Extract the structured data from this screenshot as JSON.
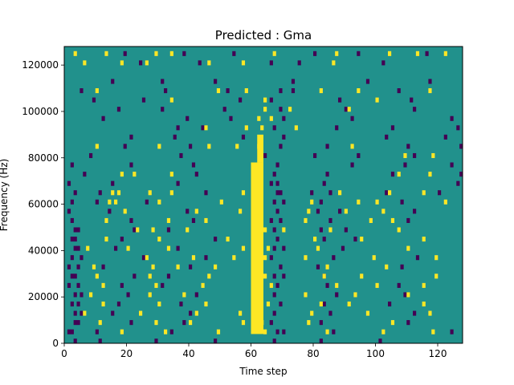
{
  "chart_data": {
    "type": "heatmap",
    "title": "Predicted : Gma",
    "xlabel": "Time step",
    "ylabel": "Frequency (Hz)",
    "xlim": [
      0,
      128
    ],
    "ylim": [
      0,
      128000
    ],
    "x_ticks": [
      0,
      20,
      40,
      60,
      80,
      100,
      120
    ],
    "y_ticks": [
      0,
      20000,
      40000,
      60000,
      80000,
      100000,
      120000
    ],
    "x_tick_labels": [
      "0",
      "20",
      "40",
      "60",
      "80",
      "100",
      "120"
    ],
    "y_tick_labels": [
      "0",
      "20000",
      "40000",
      "60000",
      "80000",
      "100000",
      "120000"
    ],
    "n_time_steps": 128,
    "n_freq_bins": 64,
    "values_legend": {
      "low": -1,
      "mid": 0,
      "high": 1
    },
    "colors": {
      "low": "#440154",
      "mid": "#21918c",
      "high": "#fde725"
    },
    "background_value": 0,
    "high_regions": [
      {
        "t_start": 60,
        "t_end": 64,
        "f_start": 4000,
        "f_end": 78000
      },
      {
        "t_start": 62,
        "t_end": 64,
        "f_start": 78000,
        "f_end": 90000
      }
    ],
    "high_cells": [
      [
        3,
        124000
      ],
      [
        34,
        124000
      ],
      [
        104,
        124000
      ],
      [
        122,
        124000
      ],
      [
        13,
        124000
      ],
      [
        29,
        124000
      ],
      [
        67,
        124000
      ],
      [
        87,
        124000
      ],
      [
        113,
        124000
      ],
      [
        6,
        120000
      ],
      [
        18,
        120000
      ],
      [
        26,
        120000
      ],
      [
        46,
        120000
      ],
      [
        57,
        120000
      ],
      [
        86,
        120000
      ],
      [
        10,
        108000
      ],
      [
        49,
        108000
      ],
      [
        58,
        108000
      ],
      [
        82,
        108000
      ],
      [
        94,
        108000
      ],
      [
        117,
        108000
      ],
      [
        34,
        104000
      ],
      [
        64,
        104000
      ],
      [
        100,
        104000
      ],
      [
        64,
        100000
      ],
      [
        72,
        100000
      ],
      [
        91,
        100000
      ],
      [
        62,
        96000
      ],
      [
        66,
        96000
      ],
      [
        45,
        92000
      ],
      [
        58,
        92000
      ],
      [
        63,
        92000
      ],
      [
        74,
        92000
      ],
      [
        10,
        84000
      ],
      [
        30,
        84000
      ],
      [
        46,
        84000
      ],
      [
        55,
        84000
      ],
      [
        62,
        84000
      ],
      [
        92,
        84000
      ],
      [
        109,
        80000
      ],
      [
        118,
        80000
      ],
      [
        18,
        72000
      ],
      [
        22,
        72000
      ],
      [
        34,
        72000
      ],
      [
        61,
        72000
      ],
      [
        107,
        72000
      ],
      [
        117,
        72000
      ],
      [
        15,
        64000
      ],
      [
        17,
        64000
      ],
      [
        27,
        64000
      ],
      [
        34,
        64000
      ],
      [
        57,
        64000
      ],
      [
        88,
        64000
      ],
      [
        104,
        64000
      ],
      [
        115,
        64000
      ],
      [
        14,
        60000
      ],
      [
        16,
        60000
      ],
      [
        30,
        60000
      ],
      [
        50,
        60000
      ],
      [
        79,
        60000
      ],
      [
        94,
        60000
      ],
      [
        100,
        60000
      ],
      [
        122,
        60000
      ],
      [
        19,
        56000
      ],
      [
        42,
        56000
      ],
      [
        56,
        56000
      ],
      [
        78,
        56000
      ],
      [
        90,
        56000
      ],
      [
        102,
        56000
      ],
      [
        13,
        52000
      ],
      [
        33,
        52000
      ],
      [
        45,
        52000
      ],
      [
        60,
        52000
      ],
      [
        77,
        52000
      ],
      [
        98,
        52000
      ],
      [
        105,
        52000
      ],
      [
        23,
        48000
      ],
      [
        28,
        48000
      ],
      [
        39,
        48000
      ],
      [
        64,
        48000
      ],
      [
        70,
        48000
      ],
      [
        85,
        48000
      ],
      [
        107,
        48000
      ],
      [
        13,
        44000
      ],
      [
        30,
        44000
      ],
      [
        52,
        44000
      ],
      [
        62,
        44000
      ],
      [
        80,
        44000
      ],
      [
        95,
        44000
      ],
      [
        115,
        44000
      ],
      [
        7,
        40000
      ],
      [
        20,
        40000
      ],
      [
        33,
        40000
      ],
      [
        57,
        40000
      ],
      [
        65,
        40000
      ],
      [
        81,
        40000
      ],
      [
        110,
        40000
      ],
      [
        26,
        36000
      ],
      [
        41,
        36000
      ],
      [
        54,
        36000
      ],
      [
        64,
        36000
      ],
      [
        77,
        36000
      ],
      [
        99,
        36000
      ],
      [
        119,
        36000
      ],
      [
        9,
        32000
      ],
      [
        28,
        32000
      ],
      [
        36,
        32000
      ],
      [
        48,
        32000
      ],
      [
        61,
        32000
      ],
      [
        84,
        32000
      ],
      [
        103,
        32000
      ],
      [
        10,
        28000
      ],
      [
        27,
        28000
      ],
      [
        46,
        28000
      ],
      [
        64,
        28000
      ],
      [
        83,
        28000
      ],
      [
        95,
        28000
      ],
      [
        119,
        28000
      ],
      [
        12,
        24000
      ],
      [
        29,
        24000
      ],
      [
        44,
        24000
      ],
      [
        66,
        24000
      ],
      [
        87,
        24000
      ],
      [
        100,
        24000
      ],
      [
        115,
        24000
      ],
      [
        8,
        20000
      ],
      [
        27,
        20000
      ],
      [
        38,
        20000
      ],
      [
        61,
        20000
      ],
      [
        77,
        20000
      ],
      [
        93,
        20000
      ],
      [
        110,
        20000
      ],
      [
        12,
        16000
      ],
      [
        30,
        16000
      ],
      [
        45,
        16000
      ],
      [
        65,
        16000
      ],
      [
        82,
        16000
      ],
      [
        91,
        16000
      ],
      [
        115,
        16000
      ],
      [
        6,
        12000
      ],
      [
        24,
        12000
      ],
      [
        42,
        12000
      ],
      [
        56,
        12000
      ],
      [
        79,
        12000
      ],
      [
        97,
        12000
      ],
      [
        117,
        12000
      ],
      [
        11,
        8000
      ],
      [
        29,
        8000
      ],
      [
        40,
        8000
      ],
      [
        57,
        8000
      ],
      [
        63,
        8000
      ],
      [
        78,
        8000
      ],
      [
        105,
        8000
      ],
      [
        18,
        4000
      ],
      [
        32,
        4000
      ],
      [
        49,
        4000
      ],
      [
        64,
        4000
      ],
      [
        84,
        4000
      ],
      [
        102,
        4000
      ],
      [
        118,
        4000
      ]
    ],
    "low_cells": [
      [
        19,
        124000
      ],
      [
        38,
        124000
      ],
      [
        54,
        124000
      ],
      [
        80,
        124000
      ],
      [
        94,
        124000
      ],
      [
        116,
        124000
      ],
      [
        24,
        120000
      ],
      [
        43,
        120000
      ],
      [
        66,
        120000
      ],
      [
        75,
        120000
      ],
      [
        102,
        120000
      ],
      [
        15,
        112000
      ],
      [
        31,
        112000
      ],
      [
        48,
        112000
      ],
      [
        73,
        112000
      ],
      [
        97,
        112000
      ],
      [
        117,
        112000
      ],
      [
        5,
        108000
      ],
      [
        32,
        108000
      ],
      [
        52,
        108000
      ],
      [
        69,
        108000
      ],
      [
        73,
        108000
      ],
      [
        107,
        108000
      ],
      [
        9,
        104000
      ],
      [
        25,
        104000
      ],
      [
        56,
        104000
      ],
      [
        66,
        104000
      ],
      [
        88,
        104000
      ],
      [
        111,
        104000
      ],
      [
        17,
        100000
      ],
      [
        31,
        100000
      ],
      [
        51,
        100000
      ],
      [
        69,
        100000
      ],
      [
        90,
        100000
      ],
      [
        112,
        100000
      ],
      [
        12,
        96000
      ],
      [
        39,
        96000
      ],
      [
        53,
        96000
      ],
      [
        70,
        96000
      ],
      [
        92,
        96000
      ],
      [
        124,
        96000
      ],
      [
        36,
        92000
      ],
      [
        44,
        92000
      ],
      [
        67,
        92000
      ],
      [
        87,
        92000
      ],
      [
        105,
        92000
      ],
      [
        126,
        92000
      ],
      [
        21,
        88000
      ],
      [
        35,
        88000
      ],
      [
        57,
        88000
      ],
      [
        70,
        88000
      ],
      [
        103,
        88000
      ],
      [
        122,
        88000
      ],
      [
        19,
        84000
      ],
      [
        40,
        84000
      ],
      [
        69,
        84000
      ],
      [
        84,
        84000
      ],
      [
        110,
        84000
      ],
      [
        127,
        84000
      ],
      [
        8,
        80000
      ],
      [
        37,
        80000
      ],
      [
        64,
        80000
      ],
      [
        80,
        80000
      ],
      [
        94,
        80000
      ],
      [
        112,
        80000
      ],
      [
        2,
        76000
      ],
      [
        21,
        76000
      ],
      [
        41,
        76000
      ],
      [
        68,
        76000
      ],
      [
        92,
        76000
      ],
      [
        109,
        76000
      ],
      [
        124,
        76000
      ],
      [
        6,
        72000
      ],
      [
        42,
        72000
      ],
      [
        67,
        72000
      ],
      [
        84,
        72000
      ],
      [
        105,
        72000
      ],
      [
        127,
        72000
      ],
      [
        1,
        68000
      ],
      [
        15,
        68000
      ],
      [
        36,
        68000
      ],
      [
        66,
        68000
      ],
      [
        68,
        68000
      ],
      [
        83,
        68000
      ],
      [
        126,
        68000
      ],
      [
        3,
        64000
      ],
      [
        11,
        64000
      ],
      [
        45,
        64000
      ],
      [
        68,
        64000
      ],
      [
        69,
        64000
      ],
      [
        79,
        64000
      ],
      [
        85,
        64000
      ],
      [
        103,
        64000
      ],
      [
        120,
        64000
      ],
      [
        2,
        60000
      ],
      [
        10,
        60000
      ],
      [
        26,
        60000
      ],
      [
        67,
        60000
      ],
      [
        70,
        60000
      ],
      [
        82,
        60000
      ],
      [
        108,
        60000
      ],
      [
        1,
        56000
      ],
      [
        14,
        56000
      ],
      [
        39,
        56000
      ],
      [
        68,
        56000
      ],
      [
        81,
        56000
      ],
      [
        88,
        56000
      ],
      [
        112,
        56000
      ],
      [
        2,
        52000
      ],
      [
        21,
        52000
      ],
      [
        41,
        52000
      ],
      [
        66,
        52000
      ],
      [
        69,
        52000
      ],
      [
        85,
        52000
      ],
      [
        110,
        52000
      ],
      [
        3,
        48000
      ],
      [
        4,
        48000
      ],
      [
        22,
        48000
      ],
      [
        33,
        48000
      ],
      [
        67,
        48000
      ],
      [
        82,
        48000
      ],
      [
        90,
        48000
      ],
      [
        2,
        44000
      ],
      [
        3,
        44000
      ],
      [
        18,
        44000
      ],
      [
        48,
        44000
      ],
      [
        68,
        44000
      ],
      [
        83,
        44000
      ],
      [
        93,
        44000
      ],
      [
        3,
        40000
      ],
      [
        4,
        40000
      ],
      [
        16,
        40000
      ],
      [
        36,
        40000
      ],
      [
        67,
        40000
      ],
      [
        70,
        40000
      ],
      [
        89,
        40000
      ],
      [
        2,
        36000
      ],
      [
        5,
        36000
      ],
      [
        25,
        36000
      ],
      [
        45,
        36000
      ],
      [
        66,
        36000
      ],
      [
        86,
        36000
      ],
      [
        113,
        36000
      ],
      [
        1,
        32000
      ],
      [
        4,
        32000
      ],
      [
        12,
        32000
      ],
      [
        40,
        32000
      ],
      [
        69,
        32000
      ],
      [
        81,
        32000
      ],
      [
        108,
        32000
      ],
      [
        2,
        28000
      ],
      [
        3,
        28000
      ],
      [
        22,
        28000
      ],
      [
        33,
        28000
      ],
      [
        67,
        28000
      ],
      [
        70,
        28000
      ],
      [
        83,
        28000
      ],
      [
        1,
        24000
      ],
      [
        4,
        24000
      ],
      [
        18,
        24000
      ],
      [
        31,
        24000
      ],
      [
        68,
        24000
      ],
      [
        84,
        24000
      ],
      [
        107,
        24000
      ],
      [
        3,
        20000
      ],
      [
        5,
        20000
      ],
      [
        20,
        20000
      ],
      [
        42,
        20000
      ],
      [
        67,
        20000
      ],
      [
        87,
        20000
      ],
      [
        109,
        20000
      ],
      [
        2,
        16000
      ],
      [
        4,
        16000
      ],
      [
        17,
        16000
      ],
      [
        37,
        16000
      ],
      [
        69,
        16000
      ],
      [
        83,
        16000
      ],
      [
        104,
        16000
      ],
      [
        3,
        12000
      ],
      [
        5,
        12000
      ],
      [
        15,
        12000
      ],
      [
        40,
        12000
      ],
      [
        67,
        12000
      ],
      [
        85,
        12000
      ],
      [
        112,
        12000
      ],
      [
        3,
        8000
      ],
      [
        4,
        8000
      ],
      [
        21,
        8000
      ],
      [
        38,
        8000
      ],
      [
        66,
        8000
      ],
      [
        82,
        8000
      ],
      [
        110,
        8000
      ],
      [
        1,
        4000
      ],
      [
        2,
        4000
      ],
      [
        10,
        4000
      ],
      [
        34,
        4000
      ],
      [
        68,
        4000
      ],
      [
        70,
        4000
      ],
      [
        86,
        4000
      ],
      [
        124,
        4000
      ],
      [
        3,
        0
      ],
      [
        11,
        0
      ],
      [
        29,
        0
      ],
      [
        48,
        0
      ],
      [
        67,
        0
      ],
      [
        82,
        0
      ],
      [
        101,
        0
      ]
    ]
  }
}
